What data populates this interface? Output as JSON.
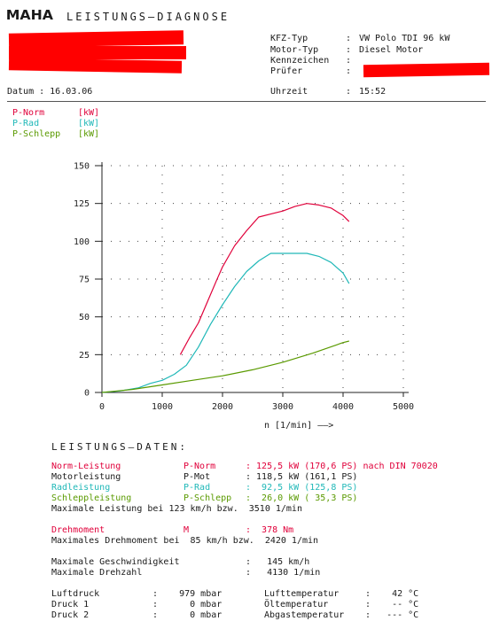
{
  "header": {
    "logo": "MAHA",
    "title": "LEISTUNGS–DIAGNOSE",
    "datum": "Datum : 16.03.06",
    "kfz_typ_label": "KFZ-Typ",
    "kfz_typ_value": "VW Polo TDI 96 kW",
    "motor_typ_label": "Motor-Typ",
    "motor_typ_value": "Diesel Motor",
    "kennzeichen_label": "Kennzeichen",
    "pruefer_label": "Prüfer",
    "uhrzeit_label": "Uhrzeit",
    "uhrzeit_value": "15:52",
    "colon": ":"
  },
  "colors": {
    "red": "#e0003a",
    "cyan": "#20b8b8",
    "green": "#5a9a00",
    "redact": "#ff0000"
  },
  "chart_data": {
    "type": "line",
    "xlabel": "n [1/min] ——>",
    "xlim": [
      0,
      5000
    ],
    "ylim": [
      0,
      150
    ],
    "x_ticks": [
      0,
      1000,
      2000,
      3000,
      4000,
      5000
    ],
    "y_ticks": [
      0,
      25,
      50,
      75,
      100,
      125,
      150
    ],
    "grid": "dotted",
    "legend": [
      {
        "name": "P-Norm",
        "unit": "[kW]"
      },
      {
        "name": "P-Rad",
        "unit": "[kW]"
      },
      {
        "name": "P-Schlepp",
        "unit": "[kW]"
      }
    ],
    "series": [
      {
        "name": "P-Norm",
        "color": "#e0003a",
        "x": [
          1300,
          1450,
          1600,
          1750,
          1900,
          2000,
          2200,
          2400,
          2600,
          2800,
          3000,
          3200,
          3400,
          3600,
          3800,
          4000,
          4100
        ],
        "values": [
          25,
          36,
          46,
          60,
          74,
          83,
          97,
          107,
          116,
          118,
          120,
          123,
          125,
          124,
          122,
          117,
          113
        ]
      },
      {
        "name": "P-Rad",
        "color": "#20b8b8",
        "x": [
          0,
          300,
          600,
          800,
          1000,
          1200,
          1400,
          1600,
          1800,
          2000,
          2200,
          2400,
          2600,
          2800,
          3000,
          3200,
          3400,
          3600,
          3800,
          4000,
          4100
        ],
        "values": [
          0,
          1,
          3,
          6,
          8,
          12,
          18,
          30,
          45,
          58,
          70,
          80,
          87,
          92,
          92,
          92,
          92,
          90,
          86,
          79,
          72
        ]
      },
      {
        "name": "P-Schlepp",
        "color": "#5a9a00",
        "x": [
          0,
          500,
          1000,
          1500,
          2000,
          2500,
          3000,
          3500,
          4000,
          4100
        ],
        "values": [
          0,
          2,
          5,
          8,
          11,
          15,
          20,
          26,
          33,
          34
        ]
      }
    ]
  },
  "daten": {
    "title": "LEISTUNGS–DATEN:",
    "rows": [
      {
        "label": "Norm-Leistung",
        "sym": "P-Norm",
        "value": ": 125,5 kW (170,6 PS) nach DIN 70020",
        "color": "red"
      },
      {
        "label": "Motorleistung",
        "sym": "P-Mot",
        "value": ": 118,5 kW (161,1 PS)",
        "color": ""
      },
      {
        "label": "Radleistung",
        "sym": "P-Rad",
        "value": ":  92,5 kW (125,8 PS)",
        "color": "cyan"
      },
      {
        "label": "Schleppleistung",
        "sym": "P-Schlepp",
        "value": ":  26,0 kW ( 35,3 PS)",
        "color": "green"
      }
    ],
    "max_leistung": "Maximale Leistung bei 123 km/h bzw.  3510 1/min",
    "drehmoment_label": "Drehmoment",
    "drehmoment_sym": "M",
    "drehmoment_value": ":  378 Nm",
    "max_drehmoment": "Maximales Drehmoment bei  85 km/h bzw.  2420 1/min",
    "max_geschw_label": "Maximale Geschwindigkeit",
    "max_geschw_value": ":   145 km/h",
    "max_drehzahl_label": "Maximale Drehzahl",
    "max_drehzahl_value": ":   4130 1/min",
    "luftdruck_label": "Luftdruck",
    "luftdruck_value": ":    979 mbar",
    "druck1_label": "Druck 1",
    "druck1_value": ":      0 mbar",
    "druck2_label": "Druck 2",
    "druck2_value": ":      0 mbar",
    "lufttemp_label": "Lufttemperatur",
    "lufttemp_value": ":    42 °C",
    "oeltemp_label": "Öltemperatur",
    "oeltemp_value": ":    -- °C",
    "abgastemp_label": "Abgastemperatur",
    "abgastemp_value": ":   --- °C"
  }
}
